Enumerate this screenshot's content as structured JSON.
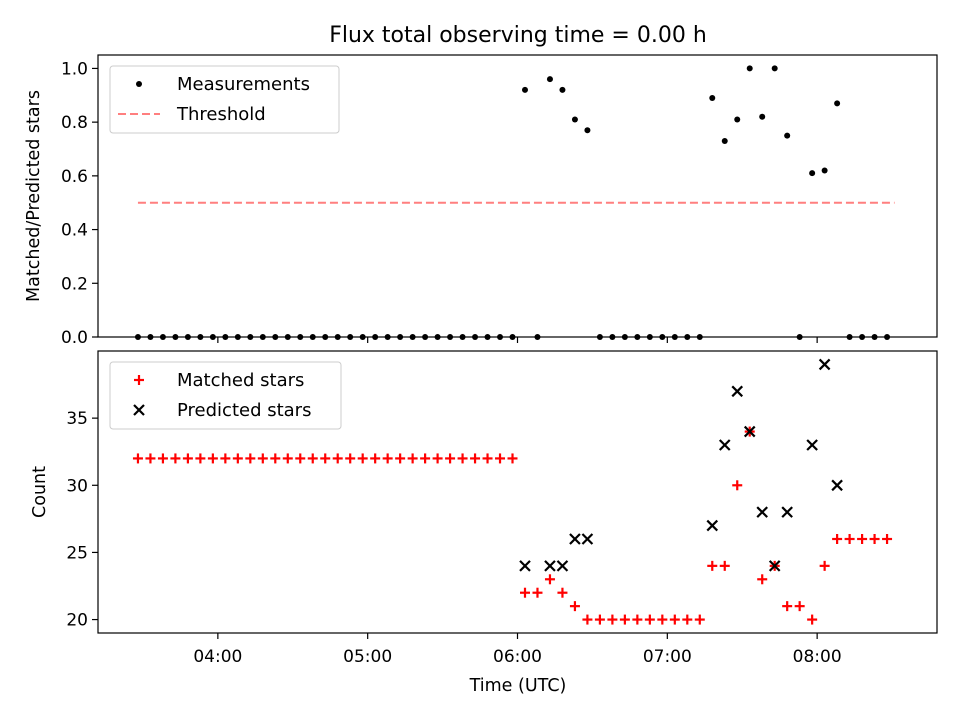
{
  "title": "Flux total observing time = 0.00 h",
  "colors": {
    "axes": "#000000",
    "threshold": "#ff7f7f",
    "measurements": "#000000",
    "matched": "#ff0000",
    "predicted": "#000000"
  },
  "chart_data": [
    {
      "type": "scatter",
      "ylabel": "Matched/Predicted stars",
      "ylim": [
        0,
        1.05
      ],
      "yticks": [
        "0.0",
        "0.2",
        "0.4",
        "0.6",
        "0.8",
        "1.0"
      ],
      "ytick_values": [
        0,
        0.2,
        0.4,
        0.6,
        0.8,
        1.0
      ],
      "legend_position": "upper-left",
      "legend": {
        "measurements": "Measurements",
        "threshold": "Threshold"
      },
      "threshold": {
        "name": "Threshold",
        "value": 0.5,
        "x_range": [
          "03:28",
          "08:31"
        ]
      },
      "series": [
        {
          "name": "Measurements",
          "x": [
            "03:28",
            "03:33",
            "03:38",
            "03:43",
            "03:48",
            "03:53",
            "03:58",
            "04:03",
            "04:08",
            "04:13",
            "04:18",
            "04:23",
            "04:28",
            "04:33",
            "04:38",
            "04:43",
            "04:48",
            "04:53",
            "04:58",
            "05:03",
            "05:08",
            "05:13",
            "05:18",
            "05:23",
            "05:28",
            "05:33",
            "05:38",
            "05:43",
            "05:48",
            "05:53",
            "05:58",
            "06:03",
            "06:08",
            "06:13",
            "06:18",
            "06:23",
            "06:28",
            "06:33",
            "06:38",
            "06:43",
            "06:48",
            "06:53",
            "06:58",
            "07:03",
            "07:08",
            "07:13",
            "07:18",
            "07:23",
            "07:28",
            "07:33",
            "07:38",
            "07:43",
            "07:48",
            "07:53",
            "07:58",
            "08:03",
            "08:08",
            "08:13",
            "08:18",
            "08:23",
            "08:28"
          ],
          "y": [
            0,
            0,
            0,
            0,
            0,
            0,
            0,
            0,
            0,
            0,
            0,
            0,
            0,
            0,
            0,
            0,
            0,
            0,
            0,
            0,
            0,
            0,
            0,
            0,
            0,
            0,
            0,
            0,
            0,
            0,
            0,
            0.92,
            0,
            0.96,
            0.92,
            0.81,
            0.77,
            0,
            0,
            0,
            0,
            0,
            0,
            0,
            0,
            0,
            0.89,
            0.73,
            0.81,
            1.0,
            0.82,
            1.0,
            0.75,
            0,
            0.61,
            0.62,
            0.87,
            0,
            0,
            0,
            0
          ]
        }
      ]
    },
    {
      "type": "scatter",
      "xlabel": "Time (UTC)",
      "ylabel": "Count",
      "ylim": [
        19,
        40
      ],
      "yticks": [
        "20",
        "25",
        "30",
        "35"
      ],
      "ytick_values": [
        20,
        25,
        30,
        35
      ],
      "xlim": [
        "03:12",
        "08:48"
      ],
      "xticks": [
        "04:00",
        "05:00",
        "06:00",
        "07:00",
        "08:00"
      ],
      "legend_position": "upper-left",
      "legend": {
        "matched": "Matched stars",
        "predicted": "Predicted stars"
      },
      "series": [
        {
          "name": "Matched stars",
          "x": [
            "03:28",
            "03:33",
            "03:38",
            "03:43",
            "03:48",
            "03:53",
            "03:58",
            "04:03",
            "04:08",
            "04:13",
            "04:18",
            "04:23",
            "04:28",
            "04:33",
            "04:38",
            "04:43",
            "04:48",
            "04:53",
            "04:58",
            "05:03",
            "05:08",
            "05:13",
            "05:18",
            "05:23",
            "05:28",
            "05:33",
            "05:38",
            "05:43",
            "05:48",
            "05:53",
            "05:58",
            "06:03",
            "06:08",
            "06:13",
            "06:18",
            "06:23",
            "06:28",
            "06:33",
            "06:38",
            "06:43",
            "06:48",
            "06:53",
            "06:58",
            "07:03",
            "07:08",
            "07:13",
            "07:18",
            "07:23",
            "07:28",
            "07:33",
            "07:38",
            "07:43",
            "07:48",
            "07:53",
            "07:58",
            "08:03",
            "08:08",
            "08:13",
            "08:18",
            "08:23",
            "08:28"
          ],
          "y": [
            32,
            32,
            32,
            32,
            32,
            32,
            32,
            32,
            32,
            32,
            32,
            32,
            32,
            32,
            32,
            32,
            32,
            32,
            32,
            32,
            32,
            32,
            32,
            32,
            32,
            32,
            32,
            32,
            32,
            32,
            32,
            22,
            22,
            23,
            22,
            21,
            20,
            20,
            20,
            20,
            20,
            20,
            20,
            20,
            20,
            20,
            24,
            24,
            30,
            34,
            23,
            24,
            21,
            21,
            20,
            24,
            26,
            26,
            26,
            26,
            26
          ]
        },
        {
          "name": "Predicted stars",
          "x": [
            "06:03",
            "06:13",
            "06:18",
            "06:23",
            "06:28",
            "07:18",
            "07:23",
            "07:28",
            "07:33",
            "07:38",
            "07:43",
            "07:48",
            "07:58",
            "08:03",
            "08:08"
          ],
          "y": [
            24,
            24,
            24,
            26,
            26,
            27,
            33,
            37,
            34,
            28,
            24,
            28,
            33,
            39,
            30
          ]
        }
      ]
    }
  ]
}
